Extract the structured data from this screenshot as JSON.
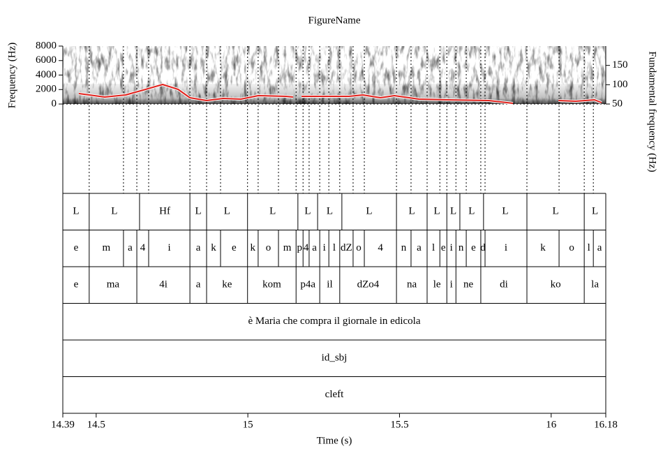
{
  "chart_data": {
    "type": "spectrogram-textgrid",
    "title": "FigureName",
    "x_label": "Time (s)",
    "y_label": "Frequency (Hz)",
    "y2_label": "Fundamental frequency (Hz)",
    "xlim": [
      14.39,
      16.18
    ],
    "xticks": [
      14.39,
      14.5,
      15,
      15.5,
      16,
      16.18
    ],
    "ylim": [
      0,
      8000
    ],
    "yticks": [
      0,
      2000,
      4000,
      6000,
      8000
    ],
    "y2lim": [
      50,
      200
    ],
    "y2ticks": [
      50,
      100,
      150
    ],
    "series": [
      {
        "color": "#e0201b",
        "axis": "y2",
        "x": [
          14.443,
          14.528,
          14.597,
          14.655,
          14.719,
          14.77,
          14.809,
          14.864,
          14.919,
          14.977,
          15.034,
          15.126,
          15.149,
          15.16,
          15.177,
          15.264,
          15.333,
          15.379,
          15.437,
          15.483,
          15.564,
          15.656,
          15.794,
          15.874,
          15.95,
          16.024,
          16.081,
          16.143,
          16.166
        ],
        "values": [
          77.1,
          68.1,
          73.5,
          86.1,
          100.6,
          88.0,
          66.3,
          59.0,
          64.5,
          62.7,
          71.7,
          69.9,
          68.1,
          null,
          69.9,
          69.9,
          69.9,
          73.5,
          66.3,
          71.7,
          62.7,
          60.8,
          59.0,
          51.8,
          null,
          59.0,
          57.2,
          60.8,
          53.6
        ]
      }
    ],
    "tiers": [
      {
        "intervals": [
          "L",
          "L",
          "Hf",
          "L",
          "L",
          "L",
          "L",
          "L",
          "L",
          "L",
          "L",
          "L",
          "L",
          "L",
          "L",
          "L"
        ],
        "boundaries": [
          14.39,
          14.477,
          14.643,
          14.809,
          14.864,
          14.999,
          15.165,
          15.23,
          15.31,
          15.49,
          15.591,
          15.656,
          15.699,
          15.777,
          15.92,
          16.109,
          16.18
        ]
      },
      {
        "intervals": [
          "e",
          "m",
          "a",
          "4",
          "i",
          "a",
          "k",
          "e",
          "k",
          "o",
          "m",
          "p",
          "4",
          "a",
          "i",
          "l",
          "dZ",
          "o",
          "4",
          "n",
          "a",
          "l",
          "e",
          "i",
          "n",
          "e",
          "d",
          "i",
          "k",
          "o",
          "l",
          "a"
        ],
        "boundaries": [
          14.39,
          14.477,
          14.59,
          14.634,
          14.673,
          14.809,
          14.864,
          14.91,
          14.999,
          15.034,
          15.101,
          15.159,
          15.182,
          15.202,
          15.237,
          15.267,
          15.303,
          15.347,
          15.384,
          15.49,
          15.538,
          15.591,
          15.633,
          15.656,
          15.686,
          15.72,
          15.768,
          15.782,
          15.92,
          16.026,
          16.109,
          16.139,
          16.18
        ]
      },
      {
        "intervals": [
          "e",
          "ma",
          "4i",
          "a",
          "ke",
          "kom",
          "p4a",
          "il",
          "dZo4",
          "na",
          "le",
          "i",
          "ne",
          "di",
          "ko",
          "la"
        ],
        "boundaries": [
          14.39,
          14.477,
          14.634,
          14.809,
          14.864,
          14.999,
          15.159,
          15.237,
          15.303,
          15.49,
          15.591,
          15.656,
          15.686,
          15.768,
          15.92,
          16.109,
          16.18
        ]
      },
      {
        "intervals": [
          "è Maria che compra il giornale in edicola"
        ],
        "boundaries": [
          14.39,
          16.18
        ]
      },
      {
        "intervals": [
          "id_sbj"
        ],
        "boundaries": [
          14.39,
          16.18
        ]
      },
      {
        "intervals": [
          "cleft"
        ],
        "boundaries": [
          14.39,
          16.18
        ]
      }
    ]
  }
}
